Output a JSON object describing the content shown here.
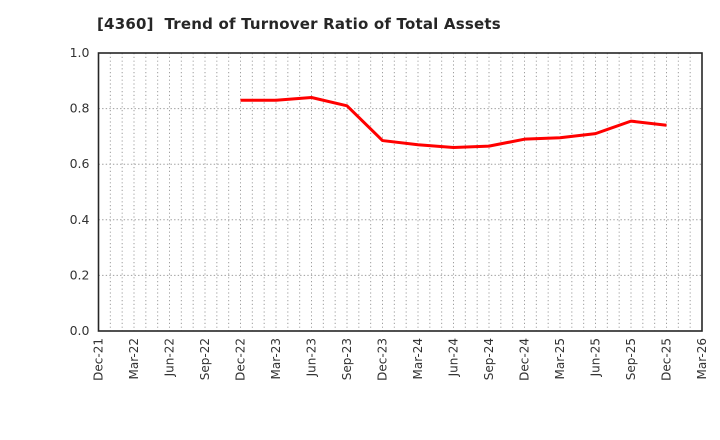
{
  "header": {
    "title": "[4360]  Trend of Turnover Ratio of Total Assets"
  },
  "colors": {
    "background": "#ffffff",
    "line": "#ff0000",
    "grid": "#9e9e9e",
    "axis_border": "#262626",
    "tick_text": "#333333",
    "title_text": "#262626"
  },
  "chart_data": {
    "type": "line",
    "title": "[4360]  Trend of Turnover Ratio of Total Assets",
    "xlabel": "",
    "ylabel": "",
    "ylim": [
      0.0,
      1.0
    ],
    "y_tick_labels": [
      "0.0",
      "0.2",
      "0.4",
      "0.6",
      "0.8",
      "1.0"
    ],
    "y_tick_values": [
      0.0,
      0.2,
      0.4,
      0.6,
      0.8,
      1.0
    ],
    "x_tick_labels": [
      "Dec-21",
      "Mar-22",
      "Jun-22",
      "Sep-22",
      "Dec-22",
      "Mar-23",
      "Jun-23",
      "Sep-23",
      "Dec-23",
      "Mar-24",
      "Jun-24",
      "Sep-24",
      "Dec-24",
      "Mar-25",
      "Jun-25",
      "Sep-25",
      "Dec-25",
      "Mar-26"
    ],
    "months_per_label": 3,
    "grid": "on",
    "grid_style": "dotted, vertical line every month, horizontal line at each y tick",
    "legend_position": "none",
    "series": [
      {
        "name": "Turnover Ratio of Total Assets",
        "color": "#ff0000",
        "categories": [
          "Dec-22",
          "Mar-23",
          "Jun-23",
          "Sep-23",
          "Dec-23",
          "Mar-24",
          "Jun-24",
          "Sep-24",
          "Dec-24",
          "Mar-25",
          "Jun-25",
          "Sep-25",
          "Dec-25"
        ],
        "values": [
          0.83,
          0.83,
          0.84,
          0.81,
          0.685,
          0.67,
          0.66,
          0.665,
          0.69,
          0.695,
          0.71,
          0.755,
          0.74
        ]
      }
    ]
  }
}
